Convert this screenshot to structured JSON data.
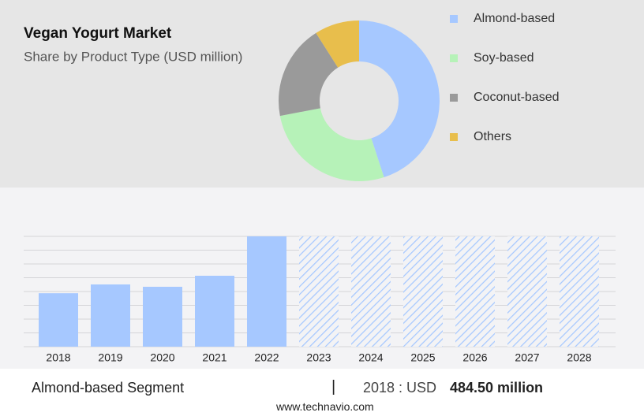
{
  "chart_data": [
    {
      "type": "donut",
      "title": "Vegan Yogurt Market",
      "subtitle": "Share by Product Type (USD million)",
      "categories": [
        "Almond-based",
        "Soy-based",
        "Coconut-based",
        "Others"
      ],
      "values": [
        45,
        27,
        19,
        9
      ],
      "colors": [
        "#a6c8ff",
        "#b6f2b8",
        "#9a9a9a",
        "#e8be4c"
      ]
    },
    {
      "type": "bar",
      "categories": [
        "2018",
        "2019",
        "2020",
        "2021",
        "2022",
        "2023",
        "2024",
        "2025",
        "2026",
        "2027",
        "2028"
      ],
      "values": [
        484.5,
        564,
        543,
        643,
        1000,
        null,
        null,
        null,
        null,
        null,
        null
      ],
      "color": "#a6c8ff",
      "ylim": [
        0,
        1000
      ],
      "yticks": [
        0,
        125,
        250,
        375,
        500,
        625,
        750,
        875,
        1000
      ],
      "grid": true
    }
  ],
  "footer": {
    "segment": "Almond-based Segment",
    "highlight_label": "2018 : USD",
    "highlight_value": "484.50 million",
    "source": "www.technavio.com"
  }
}
